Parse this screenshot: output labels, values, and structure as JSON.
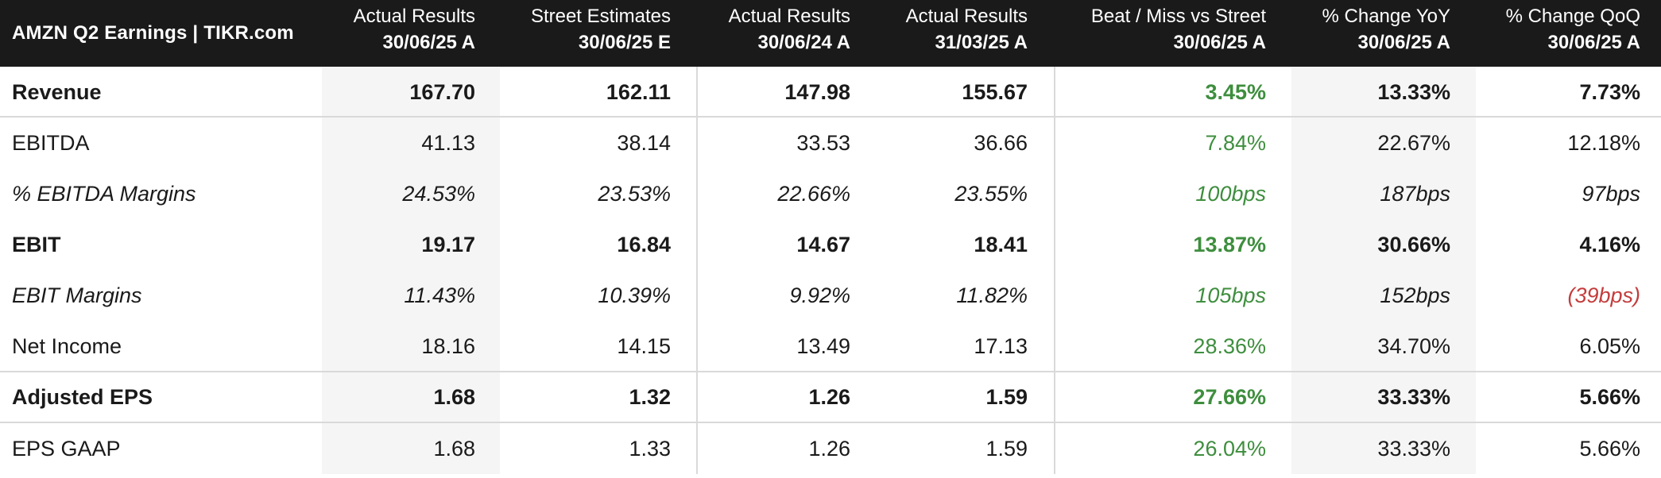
{
  "header": {
    "title": "AMZN Q2 Earnings | TIKR.com",
    "columns": [
      {
        "line1": "Actual Results",
        "line2": "30/06/25 A"
      },
      {
        "line1": "Street Estimates",
        "line2": "30/06/25 E"
      },
      {
        "line1": "Actual Results",
        "line2": "30/06/24 A"
      },
      {
        "line1": "Actual Results",
        "line2": "31/03/25 A"
      },
      {
        "line1": "Beat / Miss vs Street",
        "line2": "30/06/25 A"
      },
      {
        "line1": "% Change YoY",
        "line2": "30/06/25 A"
      },
      {
        "line1": "% Change QoQ",
        "line2": "30/06/25 A"
      }
    ]
  },
  "rows": [
    {
      "label": "Revenue",
      "style": "bold",
      "values": [
        "167.70",
        "162.11",
        "147.98",
        "155.67",
        "3.45%",
        "13.33%",
        "7.73%"
      ]
    },
    {
      "label": "EBITDA",
      "style": "normal",
      "values": [
        "41.13",
        "38.14",
        "33.53",
        "36.66",
        "7.84%",
        "22.67%",
        "12.18%"
      ]
    },
    {
      "label": "% EBITDA Margins",
      "style": "italic",
      "values": [
        "24.53%",
        "23.53%",
        "22.66%",
        "23.55%",
        "100bps",
        "187bps",
        "97bps"
      ]
    },
    {
      "label": "EBIT",
      "style": "bold",
      "values": [
        "19.17",
        "16.84",
        "14.67",
        "18.41",
        "13.87%",
        "30.66%",
        "4.16%"
      ]
    },
    {
      "label": "EBIT Margins",
      "style": "italic",
      "values": [
        "11.43%",
        "10.39%",
        "9.92%",
        "11.82%",
        "105bps",
        "152bps",
        "(39bps)"
      ]
    },
    {
      "label": "Net Income",
      "style": "normal",
      "values": [
        "18.16",
        "14.15",
        "13.49",
        "17.13",
        "28.36%",
        "34.70%",
        "6.05%"
      ]
    },
    {
      "label": "Adjusted EPS",
      "style": "bold",
      "values": [
        "1.68",
        "1.32",
        "1.26",
        "1.59",
        "27.66%",
        "33.33%",
        "5.66%"
      ]
    },
    {
      "label": "EPS GAAP",
      "style": "normal",
      "values": [
        "1.68",
        "1.33",
        "1.26",
        "1.59",
        "26.04%",
        "33.33%",
        "5.66%"
      ]
    }
  ],
  "colors": {
    "header_bg": "#1a1a1a",
    "beat": "#3e8e3e",
    "miss": "#c43c3c",
    "shaded_col": "#f5f5f5",
    "divider": "#d9d9d9"
  }
}
